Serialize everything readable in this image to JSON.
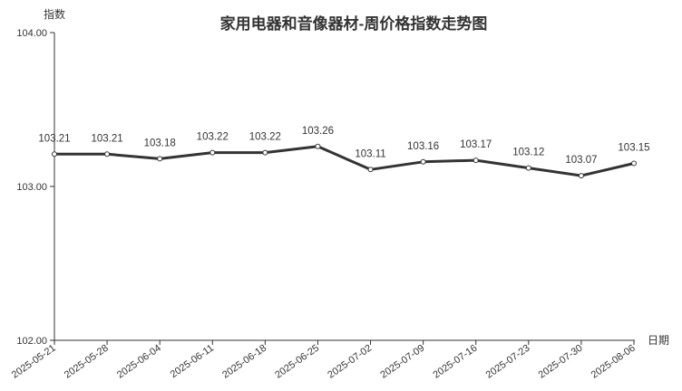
{
  "chart_data": {
    "type": "line",
    "title": "家用电器和音像器材-周价格指数走势图",
    "xlabel": "日期",
    "ylabel": "指数",
    "ylim": [
      102,
      104
    ],
    "yticks": [
      "102.00",
      "103.00",
      "104.00"
    ],
    "categories": [
      "2025-05-21",
      "2025-05-28",
      "2025-06-04",
      "2025-06-11",
      "2025-06-18",
      "2025-06-25",
      "2025-07-02",
      "2025-07-09",
      "2025-07-16",
      "2025-07-23",
      "2025-07-30",
      "2025-08-06"
    ],
    "values": [
      103.21,
      103.21,
      103.18,
      103.22,
      103.22,
      103.26,
      103.11,
      103.16,
      103.17,
      103.12,
      103.07,
      103.15
    ],
    "data_labels": [
      "103.21",
      "103.21",
      "103.18",
      "103.22",
      "103.22",
      "103.26",
      "103.11",
      "103.16",
      "103.17",
      "103.12",
      "103.07",
      "103.15"
    ],
    "grid": false,
    "line_color": "#333333"
  }
}
